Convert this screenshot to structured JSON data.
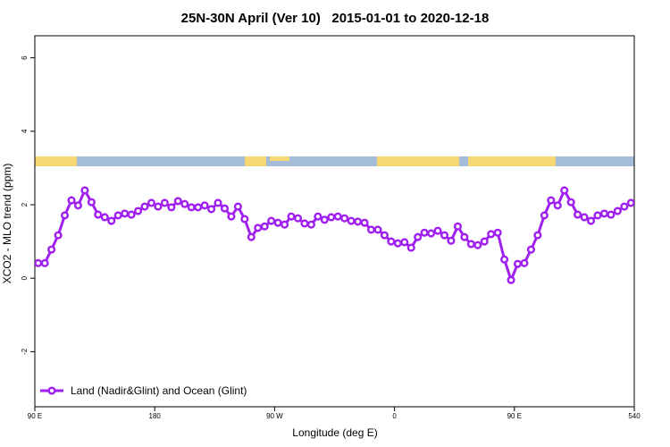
{
  "chart_data": {
    "type": "line",
    "title": "25N-30N April (Ver 10)   2015-01-01 to 2020-12-18",
    "xlabel": "Longitude (deg E)",
    "ylabel": "XCO2 - MLO trend (ppm)",
    "xlim": [
      90,
      540
    ],
    "ylim": [
      -3.5,
      6.6
    ],
    "xticks": [
      {
        "value": 90,
        "label": "90 E"
      },
      180,
      {
        "value": 270,
        "label": "90 W"
      },
      {
        "value": 360,
        "label": "0"
      },
      {
        "value": 450,
        "label": "90 E"
      },
      540
    ],
    "yticks": [
      -2,
      0,
      2,
      4,
      6
    ],
    "legend": "bottomleft",
    "x": [
      92.5,
      97.5,
      102.5,
      107.5,
      112.5,
      117.5,
      122.5,
      127.5,
      132.5,
      137.5,
      142.5,
      147.5,
      152.5,
      157.5,
      162.5,
      167.5,
      172.5,
      177.5,
      182.5,
      187.5,
      192.5,
      197.5,
      202.5,
      207.5,
      212.5,
      217.5,
      222.5,
      227.5,
      232.5,
      237.5,
      242.5,
      247.5,
      252.5,
      257.5,
      262.5,
      267.5,
      272.5,
      277.5,
      282.5,
      287.5,
      292.5,
      297.5,
      302.5,
      307.5,
      312.5,
      317.5,
      322.5,
      327.5,
      332.5,
      337.5,
      342.5,
      347.5,
      352.5,
      357.5,
      362.5,
      367.5,
      372.5,
      377.5,
      382.5,
      387.5,
      392.5,
      397.5,
      402.5,
      407.5,
      412.5,
      417.5,
      422.5,
      427.5,
      432.5,
      437.5,
      442.5,
      447.5,
      452.5,
      457.5,
      462.5,
      467.5,
      472.5,
      477.5,
      482.5,
      487.5,
      492.5,
      497.5,
      502.5,
      507.5,
      512.5,
      517.5,
      522.5,
      527.5,
      532.5,
      537.5
    ],
    "series": [
      {
        "name": "Land (Nadir&Glint) and Ocean (Glint)",
        "color": "#a020f0",
        "values": [
          0.41,
          0.41,
          0.78,
          1.17,
          1.71,
          2.12,
          1.98,
          2.39,
          2.07,
          1.73,
          1.66,
          1.56,
          1.71,
          1.76,
          1.73,
          1.83,
          1.95,
          2.05,
          1.95,
          2.05,
          1.93,
          2.1,
          2.02,
          1.93,
          1.93,
          1.98,
          1.88,
          2.05,
          1.9,
          1.68,
          1.95,
          1.61,
          1.12,
          1.37,
          1.41,
          1.56,
          1.51,
          1.46,
          1.68,
          1.63,
          1.49,
          1.46,
          1.68,
          1.59,
          1.66,
          1.68,
          1.63,
          1.56,
          1.54,
          1.51,
          1.32,
          1.32,
          1.17,
          1.0,
          0.95,
          0.98,
          0.83,
          1.12,
          1.24,
          1.22,
          1.29,
          1.17,
          1.02,
          1.41,
          1.12,
          0.93,
          0.9,
          1.0,
          1.2,
          1.24,
          0.51,
          -0.05,
          0.39,
          0.41,
          0.78,
          1.17,
          1.71,
          2.12,
          1.98,
          2.39,
          2.07,
          1.73,
          1.66,
          1.56,
          1.71,
          1.76,
          1.73,
          1.83,
          1.95,
          2.05
        ]
      }
    ]
  }
}
